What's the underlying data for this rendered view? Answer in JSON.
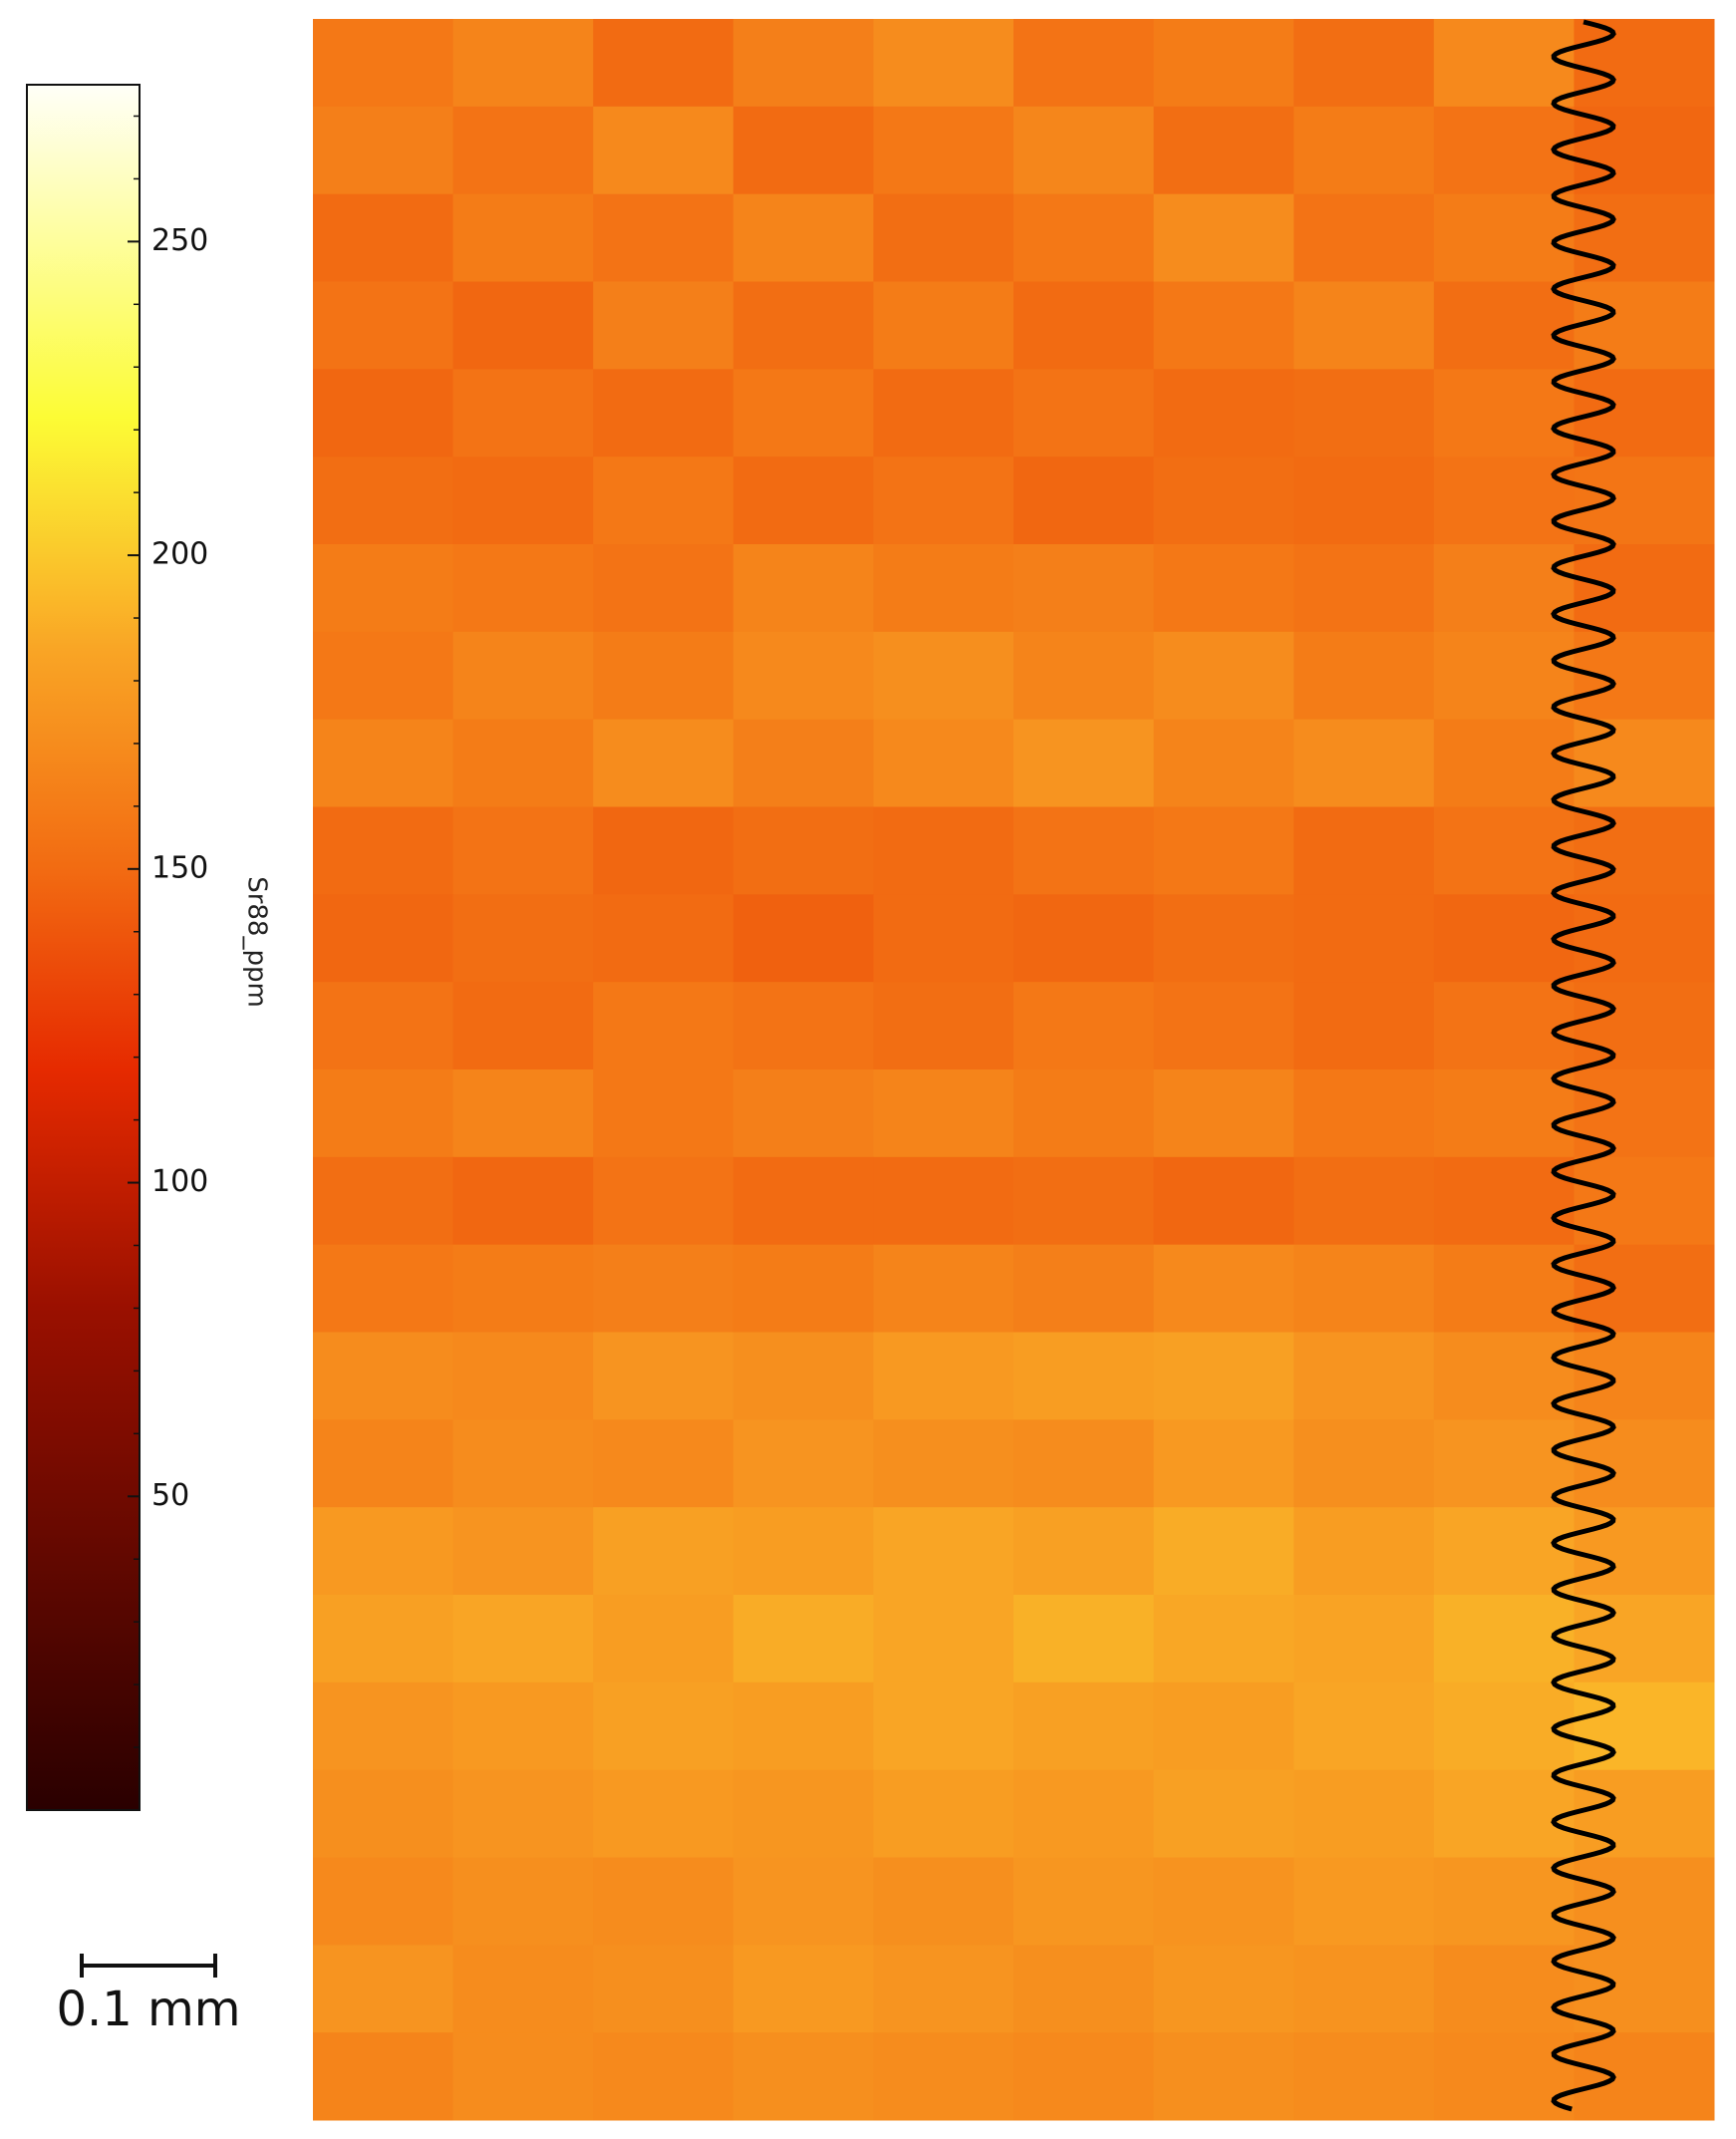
{
  "chart_data": {
    "type": "heatmap",
    "colorbar_label": "Sr88_ppm",
    "scale_bar_label": "0.1 mm",
    "clim": [
      0,
      275
    ],
    "cticks": [
      50,
      100,
      150,
      200,
      250
    ],
    "cminor_ticks": [
      10,
      20,
      30,
      40,
      60,
      70,
      80,
      90,
      110,
      120,
      130,
      140,
      160,
      170,
      180,
      190,
      210,
      220,
      230,
      240,
      260,
      270
    ],
    "colormap": [
      [
        0,
        "#2a0000"
      ],
      [
        80,
        "#9a1000"
      ],
      [
        118,
        "#e62a00"
      ],
      [
        150,
        "#f26b12"
      ],
      [
        185,
        "#f9a525"
      ],
      [
        222,
        "#fcfc35"
      ],
      [
        275,
        "#fffff8"
      ]
    ],
    "values": [
      [
        158,
        165,
        150,
        162,
        170,
        155,
        160,
        152,
        168,
        150
      ],
      [
        162,
        155,
        168,
        150,
        158,
        166,
        152,
        160,
        155,
        148
      ],
      [
        150,
        160,
        155,
        165,
        152,
        158,
        170,
        155,
        160,
        152
      ],
      [
        155,
        148,
        162,
        152,
        160,
        150,
        158,
        165,
        152,
        160
      ],
      [
        148,
        155,
        150,
        158,
        150,
        155,
        150,
        152,
        158,
        150
      ],
      [
        152,
        150,
        158,
        150,
        155,
        148,
        152,
        150,
        155,
        156
      ],
      [
        160,
        158,
        155,
        165,
        160,
        162,
        158,
        155,
        162,
        150
      ],
      [
        158,
        165,
        160,
        168,
        172,
        165,
        170,
        160,
        165,
        158
      ],
      [
        165,
        160,
        170,
        162,
        168,
        175,
        165,
        170,
        160,
        168
      ],
      [
        150,
        155,
        148,
        152,
        150,
        155,
        158,
        150,
        155,
        152
      ],
      [
        148,
        152,
        150,
        145,
        150,
        148,
        152,
        150,
        148,
        150
      ],
      [
        155,
        150,
        158,
        155,
        152,
        158,
        155,
        150,
        155,
        152
      ],
      [
        160,
        165,
        158,
        162,
        165,
        160,
        165,
        158,
        160,
        155
      ],
      [
        152,
        148,
        155,
        150,
        150,
        152,
        148,
        152,
        150,
        158
      ],
      [
        158,
        160,
        162,
        160,
        165,
        162,
        168,
        165,
        160,
        152
      ],
      [
        170,
        168,
        175,
        172,
        178,
        180,
        182,
        175,
        170,
        165
      ],
      [
        165,
        170,
        168,
        175,
        172,
        170,
        178,
        172,
        175,
        170
      ],
      [
        178,
        175,
        182,
        180,
        185,
        182,
        188,
        180,
        185,
        178
      ],
      [
        182,
        185,
        180,
        188,
        185,
        190,
        186,
        184,
        190,
        185
      ],
      [
        175,
        178,
        182,
        180,
        185,
        182,
        180,
        185,
        188,
        192
      ],
      [
        172,
        175,
        178,
        176,
        180,
        178,
        182,
        180,
        185,
        180
      ],
      [
        168,
        172,
        170,
        175,
        172,
        176,
        174,
        178,
        176,
        172
      ],
      [
        175,
        170,
        172,
        178,
        175,
        172,
        176,
        174,
        170,
        172
      ],
      [
        165,
        170,
        168,
        172,
        170,
        168,
        172,
        170,
        168,
        165
      ]
    ]
  }
}
